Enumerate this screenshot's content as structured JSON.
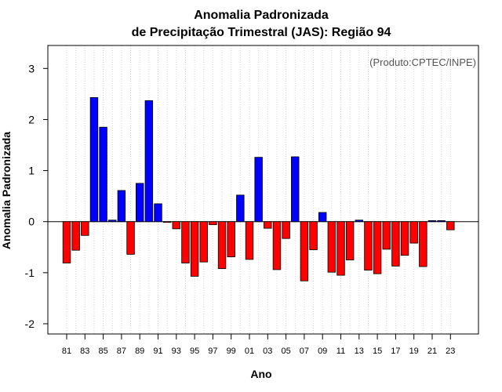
{
  "chart_data": {
    "type": "bar",
    "title": [
      "Anomalia Padronizada",
      "de Precipitação Trimestral (JAS): Região 94"
    ],
    "xlabel": "Ano",
    "ylabel": "Anomalia Padronizada",
    "annotation": "(Produto:CPTEC/INPE)",
    "ylim": [
      -2.2,
      3.45
    ],
    "yticks": [
      -2,
      -1,
      0,
      1,
      2,
      3
    ],
    "ytick_labels": [
      "-2",
      "-1",
      "0",
      "1",
      "2",
      "3"
    ],
    "xtick_labels": [
      "81",
      "83",
      "85",
      "87",
      "89",
      "91",
      "93",
      "95",
      "97",
      "99",
      "01",
      "03",
      "05",
      "07",
      "09",
      "11",
      "13",
      "15",
      "17",
      "19",
      "21",
      "23"
    ],
    "xtick_years": [
      1981,
      1983,
      1985,
      1987,
      1989,
      1991,
      1993,
      1995,
      1997,
      1999,
      2001,
      2003,
      2005,
      2007,
      2009,
      2011,
      2013,
      2015,
      2017,
      2019,
      2021,
      2023
    ],
    "grid": true,
    "colors": {
      "positive": "#0000ff",
      "negative": "#ff0000",
      "grid": "#d3d3d3",
      "axis": "#000000"
    },
    "years": [
      1981,
      1982,
      1983,
      1984,
      1985,
      1986,
      1987,
      1988,
      1989,
      1990,
      1991,
      1992,
      1993,
      1994,
      1995,
      1996,
      1997,
      1998,
      1999,
      2000,
      2001,
      2002,
      2003,
      2004,
      2005,
      2006,
      2007,
      2008,
      2009,
      2010,
      2011,
      2012,
      2013,
      2014,
      2015,
      2016,
      2017,
      2018,
      2019,
      2020,
      2021,
      2022,
      2023
    ],
    "values": [
      -0.81,
      -0.56,
      -0.27,
      2.43,
      1.85,
      0.03,
      0.61,
      -0.64,
      0.75,
      2.37,
      0.35,
      -0.01,
      -0.14,
      -0.81,
      -1.07,
      -0.79,
      -0.06,
      -0.92,
      -0.69,
      0.52,
      -0.74,
      1.26,
      -0.13,
      -0.94,
      -0.33,
      1.27,
      -1.16,
      -0.55,
      0.18,
      -0.99,
      -1.05,
      -0.75,
      0.03,
      -0.95,
      -1.02,
      -0.54,
      -0.87,
      -0.66,
      -0.42,
      -0.88,
      0.02,
      0.02,
      -0.16
    ]
  }
}
